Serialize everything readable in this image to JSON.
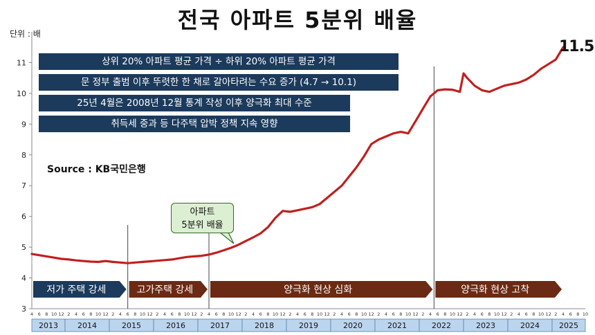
{
  "chart_data": {
    "type": "line",
    "title": "전국 아파트 5분위 배율",
    "unit_label": "단위 : 배",
    "source": "Source  : KB국민은행",
    "ylim": [
      3,
      12
    ],
    "y_ticks": [
      "3",
      "4",
      "5",
      "6",
      "7",
      "8",
      "9",
      "10",
      "11"
    ],
    "x_start": "2013-04",
    "x_end": "2025-04",
    "years": [
      "2013",
      "2014",
      "2015",
      "2016",
      "2017",
      "2018",
      "2019",
      "2020",
      "2021",
      "2022",
      "2023",
      "2024",
      "2025"
    ],
    "month_ticks": [
      "4",
      "6",
      "8",
      "10",
      "12",
      "2",
      "4",
      "6",
      "8",
      "10",
      "12"
    ],
    "series": [
      {
        "color": "#c0201e",
        "points": [
          [
            "2013-04",
            4.78
          ],
          [
            "2013-06",
            4.74
          ],
          [
            "2013-08",
            4.7
          ],
          [
            "2013-10",
            4.66
          ],
          [
            "2013-12",
            4.62
          ],
          [
            "2014-02",
            4.6
          ],
          [
            "2014-04",
            4.57
          ],
          [
            "2014-06",
            4.55
          ],
          [
            "2014-08",
            4.53
          ],
          [
            "2014-10",
            4.52
          ],
          [
            "2014-12",
            4.55
          ],
          [
            "2015-02",
            4.52
          ],
          [
            "2015-04",
            4.5
          ],
          [
            "2015-06",
            4.48
          ],
          [
            "2015-08",
            4.5
          ],
          [
            "2015-10",
            4.52
          ],
          [
            "2015-12",
            4.54
          ],
          [
            "2016-02",
            4.56
          ],
          [
            "2016-04",
            4.58
          ],
          [
            "2016-06",
            4.6
          ],
          [
            "2016-08",
            4.64
          ],
          [
            "2016-10",
            4.68
          ],
          [
            "2016-12",
            4.7
          ],
          [
            "2017-02",
            4.72
          ],
          [
            "2017-04",
            4.76
          ],
          [
            "2017-06",
            4.82
          ],
          [
            "2017-08",
            4.9
          ],
          [
            "2017-10",
            4.98
          ],
          [
            "2017-12",
            5.08
          ],
          [
            "2018-02",
            5.2
          ],
          [
            "2018-04",
            5.32
          ],
          [
            "2018-06",
            5.45
          ],
          [
            "2018-08",
            5.65
          ],
          [
            "2018-10",
            5.95
          ],
          [
            "2018-12",
            6.18
          ],
          [
            "2019-02",
            6.15
          ],
          [
            "2019-04",
            6.2
          ],
          [
            "2019-06",
            6.25
          ],
          [
            "2019-08",
            6.3
          ],
          [
            "2019-10",
            6.4
          ],
          [
            "2019-12",
            6.6
          ],
          [
            "2020-02",
            6.8
          ],
          [
            "2020-04",
            7.0
          ],
          [
            "2020-06",
            7.3
          ],
          [
            "2020-08",
            7.6
          ],
          [
            "2020-10",
            7.95
          ],
          [
            "2020-12",
            8.35
          ],
          [
            "2021-02",
            8.5
          ],
          [
            "2021-04",
            8.6
          ],
          [
            "2021-06",
            8.7
          ],
          [
            "2021-08",
            8.75
          ],
          [
            "2021-10",
            8.7
          ],
          [
            "2021-12",
            9.1
          ],
          [
            "2022-02",
            9.5
          ],
          [
            "2022-04",
            9.9
          ],
          [
            "2022-06",
            10.1
          ],
          [
            "2022-08",
            10.13
          ],
          [
            "2022-10",
            10.12
          ],
          [
            "2022-12",
            10.05
          ],
          [
            "2023-01",
            10.65
          ],
          [
            "2023-02",
            10.5
          ],
          [
            "2023-04",
            10.25
          ],
          [
            "2023-06",
            10.1
          ],
          [
            "2023-08",
            10.05
          ],
          [
            "2023-10",
            10.15
          ],
          [
            "2023-12",
            10.25
          ],
          [
            "2024-02",
            10.3
          ],
          [
            "2024-04",
            10.35
          ],
          [
            "2024-06",
            10.45
          ],
          [
            "2024-08",
            10.6
          ],
          [
            "2024-10",
            10.8
          ],
          [
            "2024-12",
            10.95
          ],
          [
            "2025-02",
            11.1
          ],
          [
            "2025-04",
            11.5
          ]
        ]
      }
    ],
    "final_label": "11.5",
    "notes": [
      "상위 20% 아파트 평균 가격 ÷ 하위 20% 아파트 평균 가격",
      "문 정부 출범 이후 뚜렷한 한 채로 갈아타려는 수요 증가 (4.7 → 10.1)",
      "25년 4월은 2008년 12월 통계 작성 이후 양극화 최대 수준",
      "취득세 중과 등 다주택 압박 정책 지속 영향"
    ],
    "callout": [
      "아파트",
      "5분위 배율"
    ],
    "phases": [
      {
        "label": "저가 주택 강세",
        "start": "2013-04",
        "end": "2015-06",
        "color": "#1b3a5c"
      },
      {
        "label": "고가주택 강세",
        "start": "2015-06",
        "end": "2017-04",
        "color": "#6b2a13"
      },
      {
        "label": "양극화 현상 심화",
        "start": "2017-04",
        "end": "2022-05",
        "color": "#6b2a13"
      },
      {
        "label": "양극화 현상 고착",
        "start": "2022-05",
        "end": "2025-04",
        "color": "#6b2a13"
      }
    ],
    "dividers": [
      "2015-06",
      "2017-04",
      "2022-05"
    ]
  }
}
